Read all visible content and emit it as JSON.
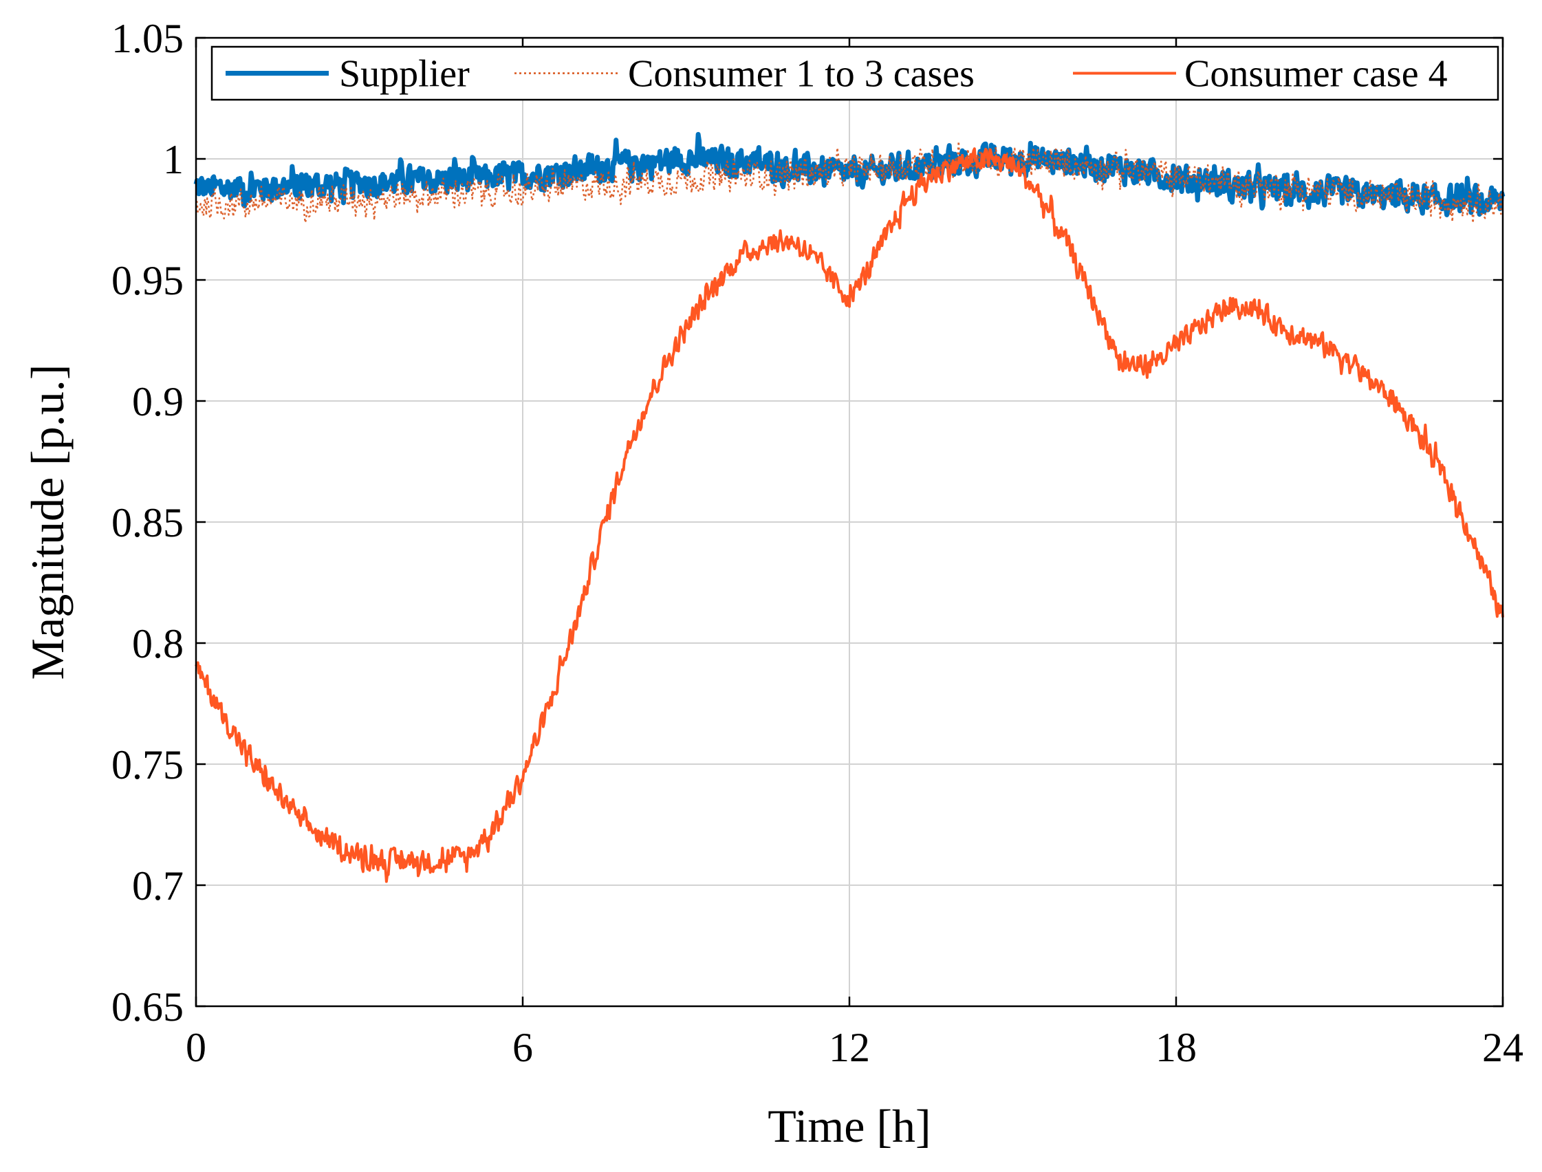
{
  "chart_data": {
    "type": "line",
    "title": "",
    "xlabel": "Time [h]",
    "ylabel": "Magnitude [p.u.]",
    "xlim": [
      0,
      24
    ],
    "ylim": [
      0.65,
      1.05
    ],
    "xticks": [
      0,
      6,
      12,
      18,
      24
    ],
    "xtick_labels": [
      "0",
      "6",
      "12",
      "18",
      "24"
    ],
    "yticks": [
      0.65,
      0.7,
      0.75,
      0.8,
      0.85,
      0.9,
      0.95,
      1.0,
      1.05
    ],
    "ytick_labels": [
      "0.65",
      "0.7",
      "0.75",
      "0.8",
      "0.85",
      "0.9",
      "0.95",
      "1",
      "1.05"
    ],
    "grid": true,
    "legend_position": "top",
    "series": [
      {
        "name": "Supplier",
        "color": "#0072BD",
        "style": "solid",
        "x": [
          0,
          1,
          2,
          3,
          4,
          5,
          6,
          7,
          8,
          9,
          10,
          11,
          12,
          13,
          14,
          15,
          16,
          17,
          18,
          19,
          20,
          21,
          22,
          23,
          24
        ],
        "y": [
          0.988,
          0.988,
          0.989,
          0.99,
          0.991,
          0.992,
          0.993,
          0.995,
          0.998,
          1.0,
          0.999,
          0.996,
          0.994,
          0.996,
          0.999,
          1.0,
          0.999,
          0.996,
          0.992,
          0.989,
          0.987,
          0.986,
          0.984,
          0.983,
          0.982
        ],
        "noise_amplitude": 0.009
      },
      {
        "name": "Consumer 1 to 3 cases",
        "color": "#D95319",
        "style": "dotted",
        "x": [
          0,
          1,
          2,
          3,
          4,
          5,
          6,
          7,
          8,
          9,
          10,
          11,
          12,
          13,
          14,
          15,
          16,
          17,
          18,
          19,
          20,
          21,
          22,
          23,
          24
        ],
        "y": [
          0.981,
          0.982,
          0.983,
          0.984,
          0.985,
          0.986,
          0.987,
          0.989,
          0.99,
          0.992,
          0.993,
          0.994,
          0.995,
          0.997,
          0.999,
          0.999,
          0.998,
          0.996,
          0.993,
          0.99,
          0.988,
          0.986,
          0.984,
          0.983,
          0.982
        ],
        "noise_amplitude": 0.009
      },
      {
        "name": "Consumer case 4",
        "color": "#FF5722",
        "style": "solid",
        "x": [
          0,
          0.5,
          1,
          1.5,
          2,
          2.5,
          3,
          3.5,
          4,
          4.5,
          5,
          5.5,
          6,
          6.5,
          7,
          7.5,
          8,
          8.5,
          9,
          9.5,
          10,
          10.5,
          11,
          11.5,
          12,
          12.5,
          13,
          13.5,
          14,
          14.5,
          15,
          15.5,
          16,
          16.5,
          17,
          17.5,
          18,
          18.5,
          19,
          19.5,
          20,
          20.5,
          21,
          21.5,
          22,
          22.5,
          23,
          23.5,
          24
        ],
        "y": [
          0.79,
          0.77,
          0.752,
          0.738,
          0.725,
          0.717,
          0.712,
          0.71,
          0.71,
          0.71,
          0.712,
          0.725,
          0.745,
          0.775,
          0.81,
          0.85,
          0.885,
          0.91,
          0.93,
          0.947,
          0.96,
          0.965,
          0.966,
          0.955,
          0.942,
          0.96,
          0.982,
          0.993,
          0.998,
          1.0,
          0.998,
          0.985,
          0.965,
          0.94,
          0.915,
          0.915,
          0.922,
          0.932,
          0.94,
          0.937,
          0.93,
          0.925,
          0.92,
          0.91,
          0.9,
          0.885,
          0.865,
          0.84,
          0.81
        ],
        "noise_amplitude": 0.007
      }
    ]
  }
}
